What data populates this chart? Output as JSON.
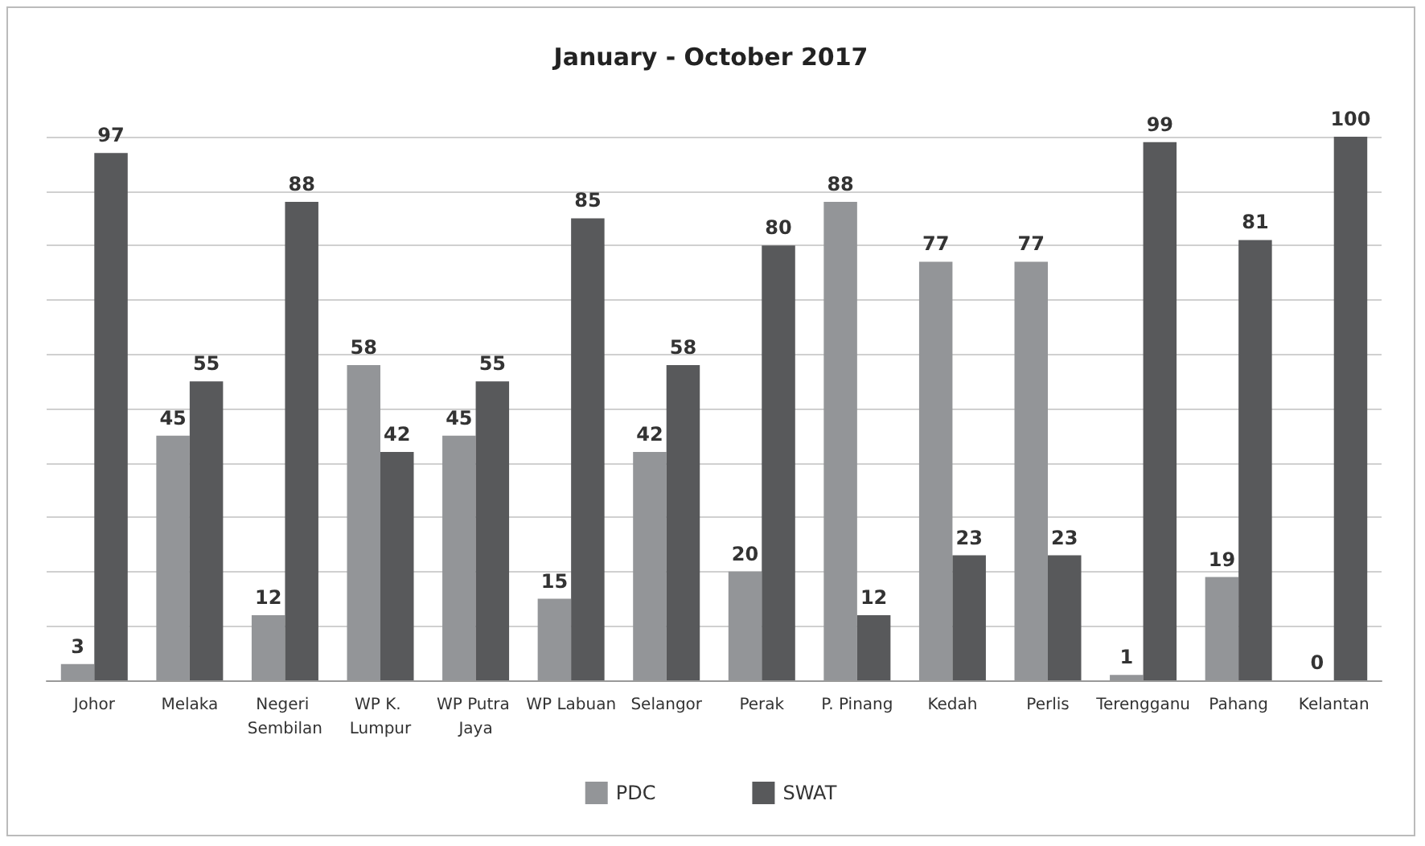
{
  "chart_data": {
    "type": "bar",
    "title": "January - October 2017",
    "categories": [
      "Johor",
      "Melaka",
      "Negeri Sembilan",
      "WP K. Lumpur",
      "WP Putra Jaya",
      "WP Labuan",
      "Selangor",
      "Perak",
      "P. Pinang",
      "Kedah",
      "Perlis",
      "Terengganu",
      "Pahang",
      "Kelantan"
    ],
    "series": [
      {
        "name": "PDC",
        "color": "#939598",
        "values": [
          3,
          45,
          12,
          58,
          45,
          15,
          42,
          20,
          88,
          77,
          77,
          1,
          19,
          0
        ]
      },
      {
        "name": "SWAT",
        "color": "#58595b",
        "values": [
          97,
          55,
          88,
          42,
          55,
          85,
          58,
          80,
          12,
          23,
          23,
          99,
          81,
          100
        ]
      }
    ],
    "ylim": [
      0,
      100
    ],
    "yticks": [
      {
        "value": 0,
        "label": null
      },
      {
        "value": 10,
        "label": null
      },
      {
        "value": 20,
        "label": null
      },
      {
        "value": 30,
        "label": null
      },
      {
        "value": 40,
        "label": null
      },
      {
        "value": 50,
        "label": null
      },
      {
        "value": 60,
        "label": null
      },
      {
        "value": 70,
        "label": null
      },
      {
        "value": 80,
        "label": null
      },
      {
        "value": 90,
        "label": null
      },
      {
        "value": 100,
        "label": null
      }
    ],
    "tick_labels": "x",
    "grid": "y",
    "data_labels": true,
    "legend": "bottom"
  }
}
